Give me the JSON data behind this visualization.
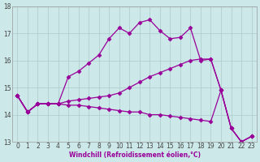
{
  "xlabel": "Windchill (Refroidissement éolien,°C)",
  "bg_color": "#cce8e8",
  "grid_color": "#aacccc",
  "line_color": "#990099",
  "marker": "D",
  "markersize": 2.5,
  "linewidth": 0.9,
  "xlim": [
    -0.5,
    23.5
  ],
  "ylim": [
    13,
    18
  ],
  "yticks": [
    13,
    14,
    15,
    16,
    17,
    18
  ],
  "xticks": [
    0,
    1,
    2,
    3,
    4,
    5,
    6,
    7,
    8,
    9,
    10,
    11,
    12,
    13,
    14,
    15,
    16,
    17,
    18,
    19,
    20,
    21,
    22,
    23
  ],
  "xlabel_color": "#990099",
  "xlabel_fontsize": 5.5,
  "tick_fontsize": 5.5,
  "series": [
    {
      "x": [
        0,
        1,
        2,
        3,
        4,
        5,
        6,
        7,
        8,
        9,
        10,
        11,
        12,
        13,
        14,
        15,
        16,
        17,
        18,
        19,
        20,
        21,
        22,
        23
      ],
      "y": [
        14.7,
        14.1,
        14.4,
        14.4,
        14.4,
        15.4,
        15.6,
        15.9,
        16.2,
        16.8,
        17.2,
        17.0,
        17.4,
        17.5,
        17.1,
        16.8,
        16.85,
        17.2,
        16.0,
        16.05,
        14.9,
        13.5,
        13.0,
        13.2
      ]
    },
    {
      "x": [
        0,
        1,
        2,
        3,
        4,
        5,
        6,
        7,
        8,
        9,
        10,
        11,
        12,
        13,
        14,
        15,
        16,
        17,
        18,
        19,
        20,
        21,
        22,
        23
      ],
      "y": [
        14.7,
        14.1,
        14.4,
        14.4,
        14.4,
        14.5,
        14.55,
        14.6,
        14.65,
        14.7,
        14.8,
        15.0,
        15.2,
        15.4,
        15.55,
        15.7,
        15.85,
        16.0,
        16.05,
        16.05,
        14.9,
        13.5,
        13.0,
        13.2
      ]
    },
    {
      "x": [
        0,
        1,
        2,
        3,
        4,
        5,
        6,
        7,
        8,
        9,
        10,
        11,
        12,
        13,
        14,
        15,
        16,
        17,
        18,
        19,
        20,
        21,
        22,
        23
      ],
      "y": [
        14.7,
        14.1,
        14.4,
        14.4,
        14.4,
        14.35,
        14.35,
        14.3,
        14.25,
        14.2,
        14.15,
        14.1,
        14.1,
        14.0,
        14.0,
        13.95,
        13.9,
        13.85,
        13.8,
        13.75,
        14.9,
        13.5,
        13.0,
        13.2
      ]
    },
    {
      "x": [
        0,
        1,
        2,
        3,
        4
      ],
      "y": [
        14.7,
        14.1,
        14.4,
        14.4,
        14.4
      ]
    }
  ]
}
